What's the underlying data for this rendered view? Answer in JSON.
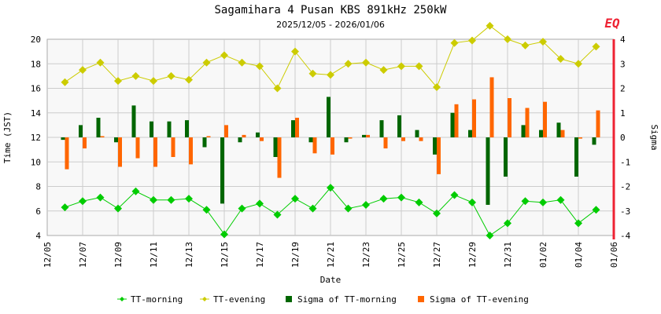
{
  "chart_data": {
    "type": "line",
    "title": "Sagamihara 4 Pusan KBS 891kHz 250kW",
    "subtitle": "2025/12/05 - 2026/01/06",
    "xlabel": "Date",
    "ylabel": "Time (JST)",
    "y2label": "Sigma",
    "marker_label": "EQ",
    "ylim": [
      4,
      20
    ],
    "y2lim": [
      -4,
      4
    ],
    "yticks": [
      "20",
      "18",
      "16",
      "14",
      "12",
      "10",
      "8",
      "6",
      "4"
    ],
    "y2ticks": [
      "4",
      "3",
      "2",
      "1",
      "0",
      "-1",
      "-2",
      "-3",
      "-4"
    ],
    "xticks": [
      "12/05",
      "12/07",
      "12/09",
      "12/11",
      "12/13",
      "12/15",
      "12/17",
      "12/19",
      "12/21",
      "12/23",
      "12/25",
      "12/27",
      "12/29",
      "12/31",
      "01/02",
      "01/04",
      "01/06"
    ],
    "x": [
      "12/06",
      "12/07",
      "12/08",
      "12/09",
      "12/10",
      "12/11",
      "12/12",
      "12/13",
      "12/14",
      "12/15",
      "12/16",
      "12/17",
      "12/18",
      "12/19",
      "12/20",
      "12/21",
      "12/22",
      "12/23",
      "12/24",
      "12/25",
      "12/26",
      "12/27",
      "12/28",
      "12/29",
      "12/30",
      "12/31",
      "01/01",
      "01/02",
      "01/03",
      "01/04",
      "01/05"
    ],
    "series": [
      {
        "name": "TT-morning",
        "axis": "left",
        "kind": "line",
        "color": "#00cc00",
        "values": [
          6.3,
          6.8,
          7.1,
          6.2,
          7.6,
          6.9,
          6.9,
          7.0,
          6.1,
          4.1,
          6.2,
          6.6,
          5.7,
          7.0,
          6.2,
          7.9,
          6.2,
          6.5,
          7.0,
          7.1,
          6.7,
          5.8,
          7.3,
          6.7,
          4.0,
          5.0,
          6.8,
          6.7,
          6.9,
          5.0,
          6.1
        ]
      },
      {
        "name": "TT-evening",
        "axis": "left",
        "kind": "line",
        "color": "#cccc00",
        "values": [
          16.5,
          17.5,
          18.1,
          16.6,
          17.0,
          16.6,
          17.0,
          16.7,
          18.1,
          18.7,
          18.1,
          17.8,
          16.0,
          19.0,
          17.2,
          17.1,
          18.0,
          18.1,
          17.5,
          17.8,
          17.8,
          16.1,
          19.7,
          19.9,
          21.1,
          20.0,
          19.5,
          19.8,
          18.4,
          18.0,
          19.4
        ]
      },
      {
        "name": "Sigma of TT-morning",
        "axis": "right",
        "kind": "bar",
        "color": "#006600",
        "values": [
          -0.1,
          0.5,
          0.8,
          -0.2,
          1.3,
          0.65,
          0.65,
          0.7,
          -0.4,
          -2.7,
          -0.2,
          0.2,
          -0.8,
          0.7,
          -0.2,
          1.65,
          -0.2,
          0.1,
          0.7,
          0.9,
          0.3,
          -0.7,
          1.0,
          0.3,
          -2.75,
          -1.6,
          0.5,
          0.3,
          0.6,
          -1.6,
          -0.3
        ]
      },
      {
        "name": "Sigma of TT-evening",
        "axis": "right",
        "kind": "bar",
        "color": "#ff6600",
        "values": [
          -1.3,
          -0.45,
          0.05,
          -1.2,
          -0.85,
          -1.2,
          -0.8,
          -1.1,
          0.05,
          0.5,
          0.1,
          -0.15,
          -1.65,
          0.8,
          -0.65,
          -0.7,
          -0.05,
          0.1,
          -0.45,
          -0.15,
          -0.15,
          -1.5,
          1.35,
          1.55,
          2.45,
          1.6,
          1.2,
          1.45,
          0.3,
          -0.05,
          1.1
        ]
      }
    ],
    "legend_position": "bottom",
    "grid": true
  }
}
